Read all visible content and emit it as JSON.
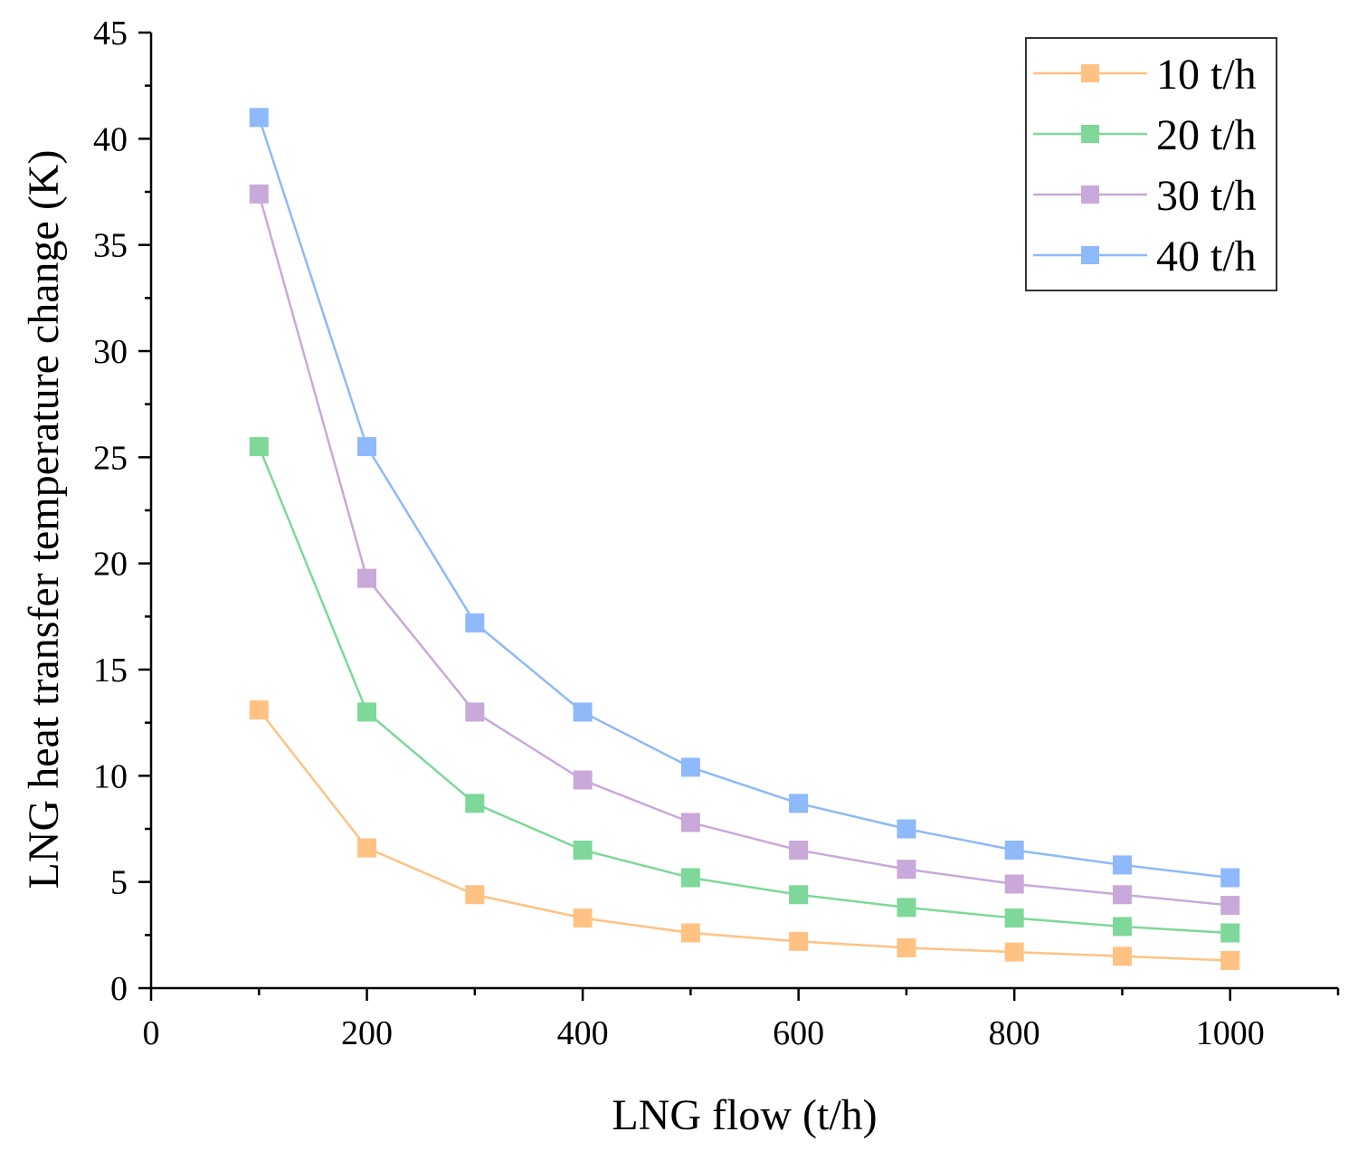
{
  "chart_data": {
    "type": "line",
    "title": "",
    "xlabel": "LNG flow (t/h)",
    "ylabel": "LNG heat transfer temperature change (K)",
    "xlim": [
      0,
      1100
    ],
    "ylim": [
      0,
      45
    ],
    "x_ticks": [
      0,
      200,
      400,
      600,
      800,
      1000
    ],
    "x_minor_ticks": [
      100,
      300,
      500,
      700,
      900,
      1100
    ],
    "y_ticks": [
      0,
      5,
      10,
      15,
      20,
      25,
      30,
      35,
      40,
      45
    ],
    "grid": false,
    "legend_position": "top-right",
    "x": [
      100,
      200,
      300,
      400,
      500,
      600,
      700,
      800,
      900,
      1000
    ],
    "series": [
      {
        "name": "10 t/h",
        "color": "#FFC283",
        "marker": "square",
        "values": [
          13.1,
          6.6,
          4.4,
          3.3,
          2.6,
          2.2,
          1.9,
          1.7,
          1.5,
          1.3
        ]
      },
      {
        "name": "20 t/h",
        "color": "#7DD89A",
        "marker": "square",
        "values": [
          25.5,
          13.0,
          8.7,
          6.5,
          5.2,
          4.4,
          3.8,
          3.3,
          2.9,
          2.6
        ]
      },
      {
        "name": "30 t/h",
        "color": "#C9A9D9",
        "marker": "square",
        "values": [
          37.4,
          19.3,
          13.0,
          9.8,
          7.8,
          6.5,
          5.6,
          4.9,
          4.4,
          3.9
        ]
      },
      {
        "name": "40 t/h",
        "color": "#8EB9FA",
        "marker": "square",
        "values": [
          41.0,
          25.5,
          17.2,
          13.0,
          10.4,
          8.7,
          7.5,
          6.5,
          5.8,
          5.2
        ]
      }
    ]
  }
}
